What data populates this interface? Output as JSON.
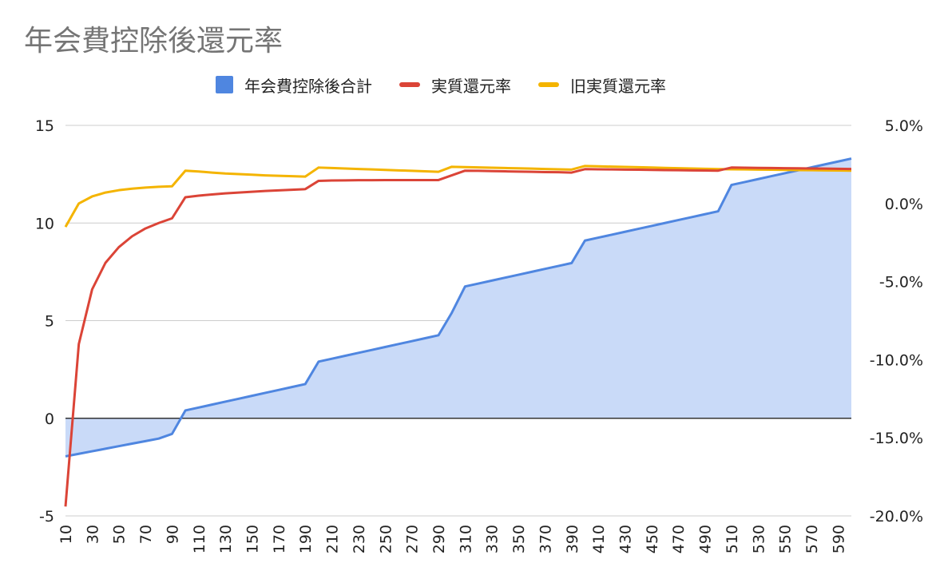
{
  "chart_data": {
    "type": "area",
    "title": "年会費控除後還元率",
    "x": [
      10,
      20,
      30,
      40,
      50,
      60,
      70,
      80,
      90,
      100,
      110,
      120,
      130,
      140,
      150,
      160,
      170,
      180,
      190,
      200,
      210,
      220,
      230,
      240,
      250,
      260,
      270,
      280,
      290,
      300,
      310,
      320,
      330,
      340,
      350,
      360,
      370,
      380,
      390,
      400,
      410,
      420,
      430,
      440,
      450,
      460,
      470,
      480,
      490,
      500,
      510,
      520,
      530,
      540,
      550,
      560,
      570,
      580,
      590,
      600
    ],
    "xticks": [
      10,
      30,
      50,
      70,
      90,
      110,
      130,
      150,
      170,
      190,
      210,
      230,
      250,
      270,
      290,
      310,
      330,
      350,
      370,
      390,
      410,
      430,
      450,
      470,
      490,
      510,
      530,
      550,
      570,
      590
    ],
    "xlim": [
      10,
      600
    ],
    "ylim": [
      -5,
      15
    ],
    "yticks": [
      -5,
      0,
      5,
      10,
      15
    ],
    "y2lim": [
      -20,
      5
    ],
    "y2ticks": [
      "-20.0%",
      "-15.0%",
      "-10.0%",
      "-5.0%",
      "0.0%",
      "5.0%"
    ],
    "legend_position": "top",
    "grid": true,
    "series": [
      {
        "name": "年会費控除後合計",
        "kind": "area",
        "axis": "left",
        "color": "#4f86e0",
        "fill": "#c9daf8",
        "values": [
          -1.95,
          -1.82,
          -1.69,
          -1.56,
          -1.43,
          -1.3,
          -1.17,
          -1.04,
          -0.8,
          0.4,
          0.55,
          0.7,
          0.85,
          1.0,
          1.15,
          1.3,
          1.45,
          1.6,
          1.75,
          2.9,
          3.05,
          3.2,
          3.35,
          3.5,
          3.65,
          3.8,
          3.95,
          4.1,
          4.25,
          5.4,
          6.75,
          6.9,
          7.05,
          7.2,
          7.35,
          7.5,
          7.65,
          7.8,
          7.95,
          9.1,
          9.25,
          9.4,
          9.55,
          9.7,
          9.85,
          10.0,
          10.15,
          10.3,
          10.45,
          10.6,
          11.95,
          12.1,
          12.25,
          12.4,
          12.55,
          12.7,
          12.85,
          13.0,
          13.15,
          13.3
        ]
      },
      {
        "name": "実質還元率",
        "kind": "line",
        "axis": "right",
        "color": "#db4437",
        "values": [
          -19.4,
          -9.0,
          -5.5,
          -3.8,
          -2.8,
          -2.1,
          -1.6,
          -1.25,
          -0.95,
          0.4,
          0.5,
          0.58,
          0.65,
          0.7,
          0.75,
          0.8,
          0.84,
          0.88,
          0.92,
          1.45,
          1.47,
          1.48,
          1.49,
          1.49,
          1.5,
          1.5,
          1.5,
          1.5,
          1.5,
          1.8,
          2.1,
          2.09,
          2.07,
          2.06,
          2.04,
          2.03,
          2.01,
          2.0,
          1.98,
          2.2,
          2.19,
          2.18,
          2.17,
          2.16,
          2.15,
          2.14,
          2.13,
          2.12,
          2.11,
          2.1,
          2.3,
          2.29,
          2.28,
          2.27,
          2.26,
          2.25,
          2.24,
          2.23,
          2.22,
          2.21
        ]
      },
      {
        "name": "旧実質還元率",
        "kind": "line",
        "axis": "right",
        "color": "#f4b400",
        "values": [
          -1.5,
          0.0,
          0.45,
          0.7,
          0.85,
          0.95,
          1.02,
          1.07,
          1.1,
          2.1,
          2.05,
          1.98,
          1.92,
          1.88,
          1.84,
          1.8,
          1.77,
          1.75,
          1.72,
          2.3,
          2.27,
          2.24,
          2.21,
          2.18,
          2.15,
          2.12,
          2.09,
          2.06,
          2.03,
          2.35,
          2.33,
          2.31,
          2.29,
          2.27,
          2.25,
          2.23,
          2.21,
          2.19,
          2.17,
          2.4,
          2.38,
          2.36,
          2.34,
          2.32,
          2.3,
          2.28,
          2.26,
          2.24,
          2.22,
          2.2,
          2.19,
          2.18,
          2.17,
          2.16,
          2.15,
          2.14,
          2.13,
          2.12,
          2.11,
          2.1
        ]
      }
    ]
  }
}
